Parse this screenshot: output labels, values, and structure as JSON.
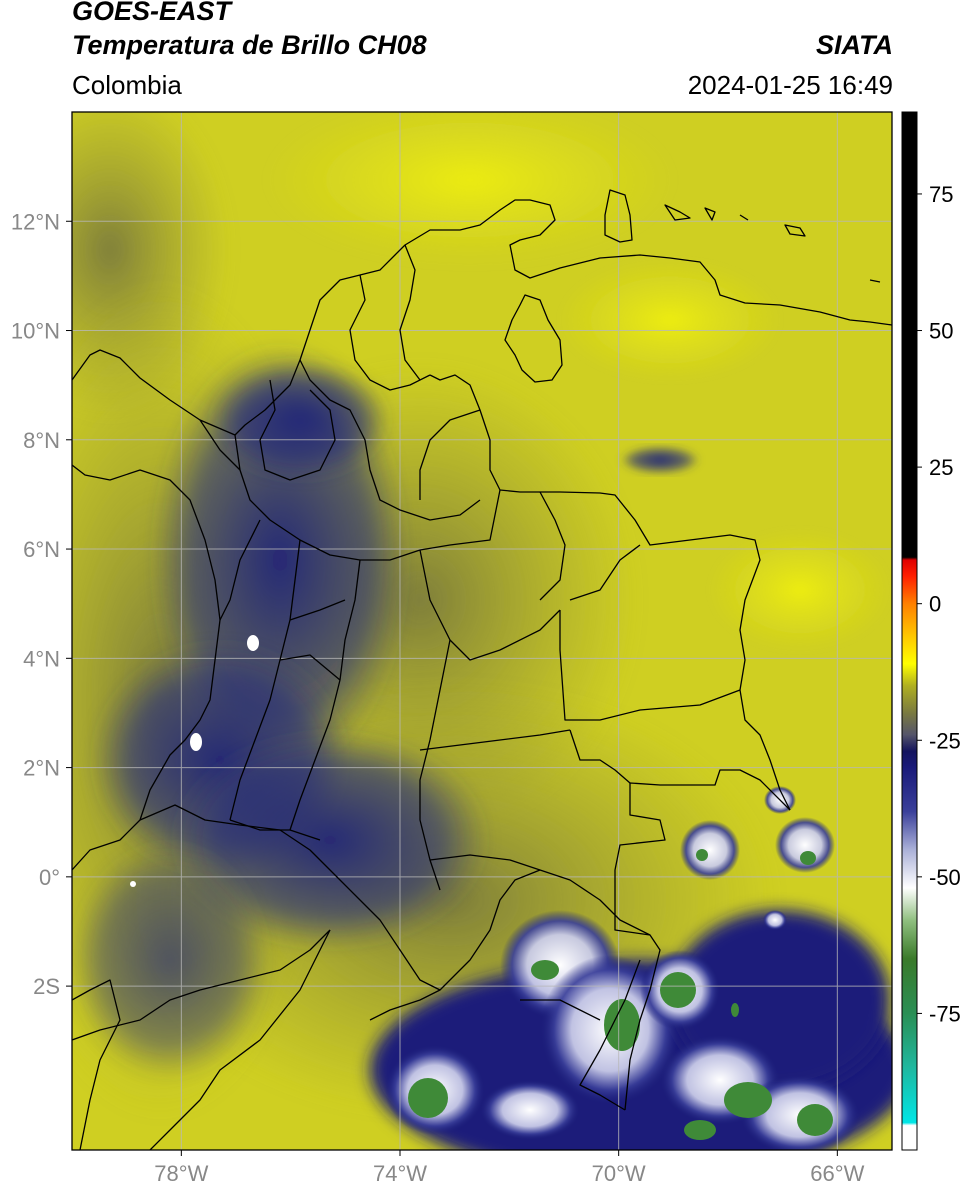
{
  "header": {
    "satellite": "GOES-EAST",
    "product": "Temperatura de Brillo CH08",
    "region": "Colombia",
    "organization": "SIATA",
    "timestamp": "2024-01-25 16:49"
  },
  "map": {
    "lon_range": [
      -80,
      -65
    ],
    "lat_range": [
      -5,
      14
    ],
    "lon_ticks": [
      {
        "value": -78,
        "label": "78°W"
      },
      {
        "value": -74,
        "label": "74°W"
      },
      {
        "value": -70,
        "label": "70°W"
      },
      {
        "value": -66,
        "label": "66°W"
      }
    ],
    "lat_ticks": [
      {
        "value": 12,
        "label": "12°N"
      },
      {
        "value": 10,
        "label": "10°N"
      },
      {
        "value": 8,
        "label": "8°N"
      },
      {
        "value": 6,
        "label": "6°N"
      },
      {
        "value": 4,
        "label": "4°N"
      },
      {
        "value": 2,
        "label": "2°N"
      },
      {
        "value": 0,
        "label": "0°"
      },
      {
        "value": -2,
        "label": "2S"
      }
    ],
    "gridlines": true
  },
  "colorbar": {
    "range": [
      -100,
      90
    ],
    "ticks": [
      {
        "value": 75,
        "label": "75"
      },
      {
        "value": 50,
        "label": "50"
      },
      {
        "value": 25,
        "label": "25"
      },
      {
        "value": 0,
        "label": "0"
      },
      {
        "value": -25,
        "label": "-25"
      },
      {
        "value": -50,
        "label": "-50"
      },
      {
        "value": -75,
        "label": "-75"
      }
    ],
    "stops": [
      {
        "value": -100,
        "color": "#ffffff"
      },
      {
        "value": -95.5,
        "color": "#ffffff"
      },
      {
        "value": -95,
        "color": "#00e6e6"
      },
      {
        "value": -85,
        "color": "#1fb8a0"
      },
      {
        "value": -75,
        "color": "#2a8f55"
      },
      {
        "value": -65,
        "color": "#3a7a2a"
      },
      {
        "value": -58,
        "color": "#8fbf7f"
      },
      {
        "value": -52,
        "color": "#ffffff"
      },
      {
        "value": -45,
        "color": "#aab0d8"
      },
      {
        "value": -38,
        "color": "#3a3f9a"
      },
      {
        "value": -30,
        "color": "#1a1a7a"
      },
      {
        "value": -27,
        "color": "#14145e"
      },
      {
        "value": -24,
        "color": "#55556a"
      },
      {
        "value": -20,
        "color": "#7a7a40"
      },
      {
        "value": -15,
        "color": "#b0b020"
      },
      {
        "value": -11,
        "color": "#ffff00"
      },
      {
        "value": -6,
        "color": "#ffc800"
      },
      {
        "value": 0,
        "color": "#ff8000"
      },
      {
        "value": 5,
        "color": "#ff2000"
      },
      {
        "value": 8,
        "color": "#e00000"
      },
      {
        "value": 8.5,
        "color": "#000000"
      },
      {
        "value": 90,
        "color": "#000000"
      }
    ]
  },
  "palette": {
    "field_dry": "#d4d41f",
    "field_mid": "#8f8f3a",
    "field_cold": "#1b1f7a",
    "cloud_white": "#ffffff",
    "cloud_green": "#3f8a38",
    "border_color": "#000000",
    "grid_color": "#b8b8b8"
  }
}
